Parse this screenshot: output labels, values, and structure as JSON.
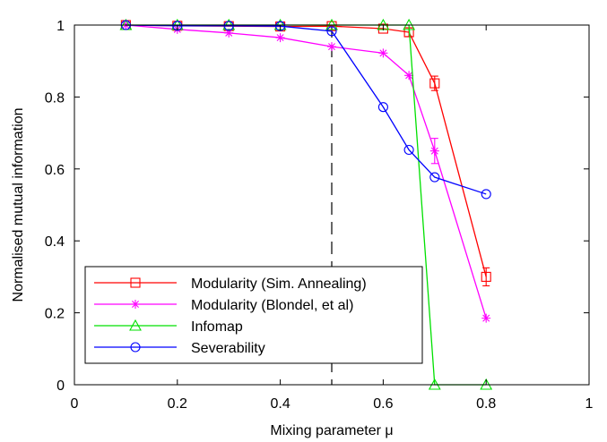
{
  "chart_data": {
    "type": "line",
    "xlabel": "Mixing parameter μ",
    "ylabel": "Normalised mutual information",
    "xlim": [
      0,
      1
    ],
    "ylim": [
      0,
      1
    ],
    "xticks": [
      0,
      0.2,
      0.4,
      0.6,
      0.8,
      1
    ],
    "yticks": [
      0,
      0.2,
      0.4,
      0.6,
      0.8,
      1
    ],
    "xtick_labels": [
      "0",
      "0.2",
      "0.4",
      "0.6",
      "0.8",
      "1"
    ],
    "ytick_labels": [
      "0",
      "0.2",
      "0.4",
      "0.6",
      "0.8",
      "1"
    ],
    "grid": false,
    "legend_position": "bottom-left",
    "vline": {
      "x": 0.5,
      "style": "dashed",
      "color": "#000000"
    },
    "series": [
      {
        "name": "Modularity (Sim. Annealing)",
        "color": "#ff0000",
        "marker": "square",
        "x": [
          0.1,
          0.2,
          0.3,
          0.4,
          0.5,
          0.6,
          0.65,
          0.7,
          0.8
        ],
        "y": [
          1.0,
          0.998,
          0.997,
          0.996,
          0.997,
          0.99,
          0.98,
          0.838,
          0.3
        ],
        "err": [
          0,
          0,
          0,
          0,
          0,
          0,
          0.012,
          0.02,
          0.025
        ]
      },
      {
        "name": "Modularity (Blondel, et al)",
        "color": "#ff00ff",
        "marker": "asterisk",
        "x": [
          0.1,
          0.2,
          0.3,
          0.4,
          0.5,
          0.6,
          0.65,
          0.7,
          0.8
        ],
        "y": [
          1.0,
          0.988,
          0.978,
          0.965,
          0.94,
          0.922,
          0.86,
          0.65,
          0.185
        ],
        "err": [
          0,
          0,
          0,
          0,
          0,
          0,
          0,
          0.035,
          0
        ]
      },
      {
        "name": "Infomap",
        "color": "#00e000",
        "marker": "triangle",
        "x": [
          0.1,
          0.2,
          0.3,
          0.4,
          0.5,
          0.6,
          0.65,
          0.7,
          0.8
        ],
        "y": [
          1.0,
          1.0,
          1.0,
          1.0,
          1.0,
          1.0,
          1.0,
          0.0,
          0.0
        ],
        "err": [
          0,
          0,
          0,
          0,
          0,
          0,
          0,
          0,
          0
        ]
      },
      {
        "name": "Severability",
        "color": "#0000ff",
        "marker": "circle",
        "x": [
          0.1,
          0.2,
          0.3,
          0.4,
          0.5,
          0.6,
          0.65,
          0.7,
          0.8
        ],
        "y": [
          1.0,
          0.998,
          0.998,
          0.997,
          0.983,
          0.772,
          0.653,
          0.577,
          0.53
        ],
        "err": [
          0,
          0,
          0,
          0,
          0,
          0,
          0,
          0,
          0
        ]
      }
    ]
  }
}
